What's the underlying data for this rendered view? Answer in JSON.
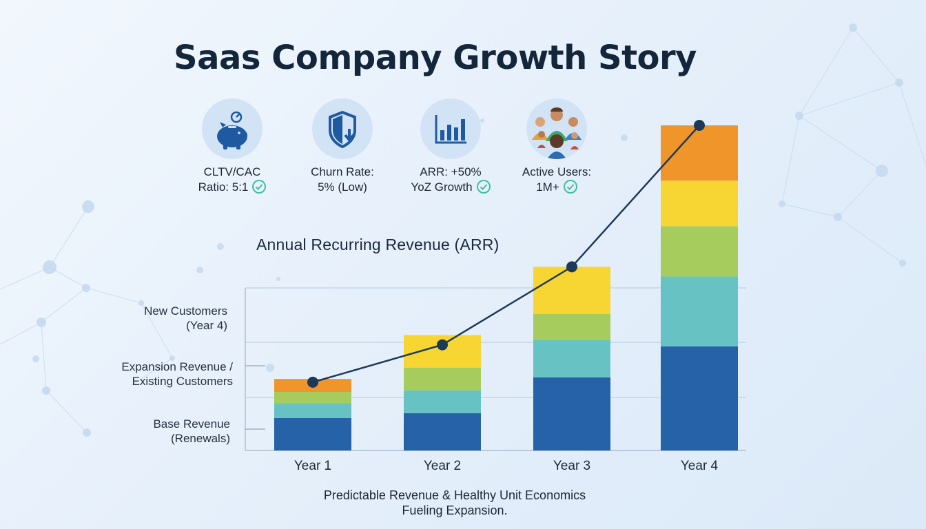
{
  "title": "Saas Company Growth Story",
  "kpis": [
    {
      "icon": "piggy-bank-icon",
      "line1": "CLTV/CAC",
      "line2": "Ratio: 5:1",
      "checked": true
    },
    {
      "icon": "shield-down-arrow-icon",
      "line1": "Churn Rate:",
      "line2": "5% (Low)",
      "checked": false
    },
    {
      "icon": "bar-chart-icon",
      "line1": "ARR: +50%",
      "line2": "YoZ Growth",
      "checked": true
    },
    {
      "icon": "users-group-icon",
      "line1": "Active Users:",
      "line2": "1M+",
      "checked": true
    }
  ],
  "colors": {
    "base": "#2562a8",
    "expansion_teal": "#67c3c3",
    "expansion_green": "#a7cc5e",
    "new_yellow": "#f7d633",
    "new_orange": "#f0952a",
    "line": "#1c3a58",
    "check": "#3fbf9f"
  },
  "chart_data": {
    "type": "bar",
    "stacked": true,
    "title": "Annual Recurring Revenue (ARR)",
    "categories": [
      "Year 1",
      "Year 2",
      "Year 3",
      "Year 4"
    ],
    "ylim": [
      0,
      100
    ],
    "grid": true,
    "series": [
      {
        "name": "",
        "values": [
          10,
          11.5,
          22.5,
          32
        ]
      },
      {
        "name": "",
        "values": [
          4.5,
          7,
          11.5,
          21.5
        ]
      },
      {
        "name": "",
        "values": [
          3.5,
          7,
          8,
          15.5
        ]
      },
      {
        "name": "",
        "values": [
          0,
          10,
          14.5,
          14
        ]
      },
      {
        "name": "",
        "values": [
          4,
          0,
          0,
          17
        ]
      }
    ],
    "trend_line": {
      "values": [
        21,
        32.5,
        56.5,
        100
      ]
    },
    "legend_labels": [
      {
        "line1": "New Customers",
        "line2": "(Year 4)"
      },
      {
        "line1": "Expansion Revenue /",
        "line2": "Existing Customers"
      },
      {
        "line1": "Base Revenue",
        "line2": "(Renewals)"
      }
    ]
  },
  "caption": {
    "line1": "Predictable Revenue & Healthy Unit Economics",
    "line2": "Fueling Expansion."
  }
}
